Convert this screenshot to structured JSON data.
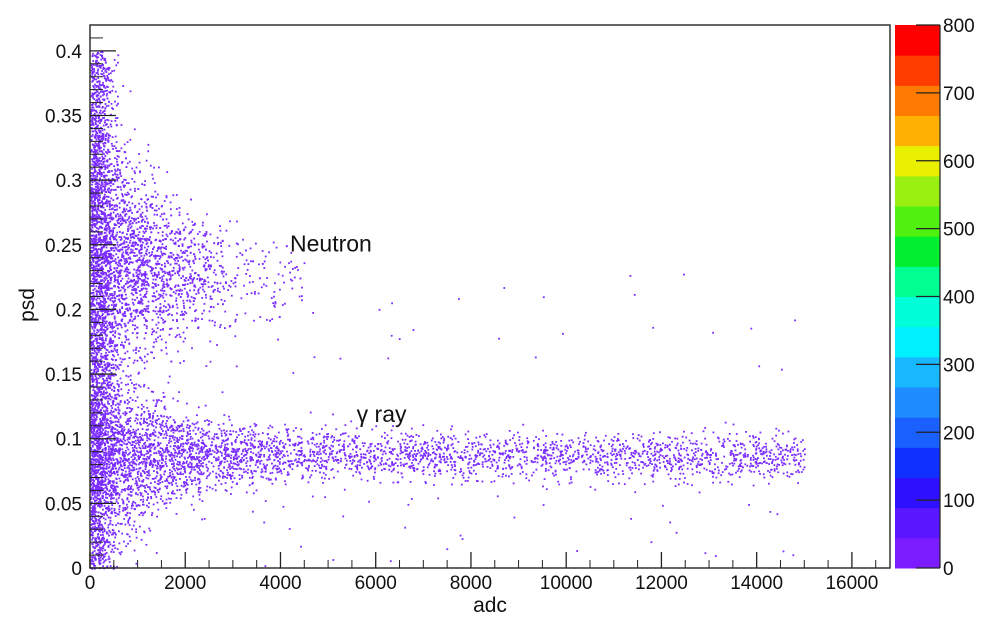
{
  "chart_data": {
    "type": "heatmap",
    "subtype": "2D histogram (scatter-like)",
    "title": "",
    "xlabel": "adc",
    "ylabel": "psd",
    "xlim": [
      0,
      16800
    ],
    "ylim": [
      0,
      0.42
    ],
    "xticks": [
      0,
      2000,
      4000,
      6000,
      8000,
      10000,
      12000,
      14000,
      16000
    ],
    "xtick_labels": [
      "0",
      "2000",
      "4000",
      "6000",
      "8000",
      "10000",
      "12000",
      "14000",
      "16000"
    ],
    "yticks": [
      0,
      0.05,
      0.1,
      0.15,
      0.2,
      0.25,
      0.3,
      0.35,
      0.4
    ],
    "ytick_labels": [
      "0",
      "0.05",
      "0.1",
      "0.15",
      "0.2",
      "0.25",
      "0.3",
      "0.35",
      "0.4"
    ],
    "grid": false,
    "point_color": "#7b2cff",
    "clusters": [
      {
        "name": "Neutron",
        "psd_center": 0.22,
        "adc_range": [
          0,
          4500
        ]
      },
      {
        "name": "γ ray",
        "psd_center": 0.087,
        "adc_range": [
          0,
          15000
        ]
      }
    ],
    "annotations": [
      {
        "text": "Neutron",
        "adc": 4200,
        "psd": 0.245
      },
      {
        "text": "γ ray",
        "adc": 5600,
        "psd": 0.113
      }
    ],
    "colorbar": {
      "range": [
        0,
        800
      ],
      "ticks": [
        0,
        100,
        200,
        300,
        400,
        500,
        600,
        700,
        800
      ],
      "tick_labels": [
        "0",
        "100",
        "200",
        "300",
        "400",
        "500",
        "600",
        "700",
        "800"
      ],
      "band_colors": [
        "#7a1cff",
        "#5a16ff",
        "#2e10ff",
        "#1030ff",
        "#1a60ff",
        "#1e8cff",
        "#18b8ff",
        "#00f0ff",
        "#00ffd8",
        "#00ff90",
        "#00f030",
        "#50f010",
        "#9af010",
        "#e8f000",
        "#ffb000",
        "#ff7a00",
        "#ff3c00",
        "#ff0000"
      ]
    }
  }
}
